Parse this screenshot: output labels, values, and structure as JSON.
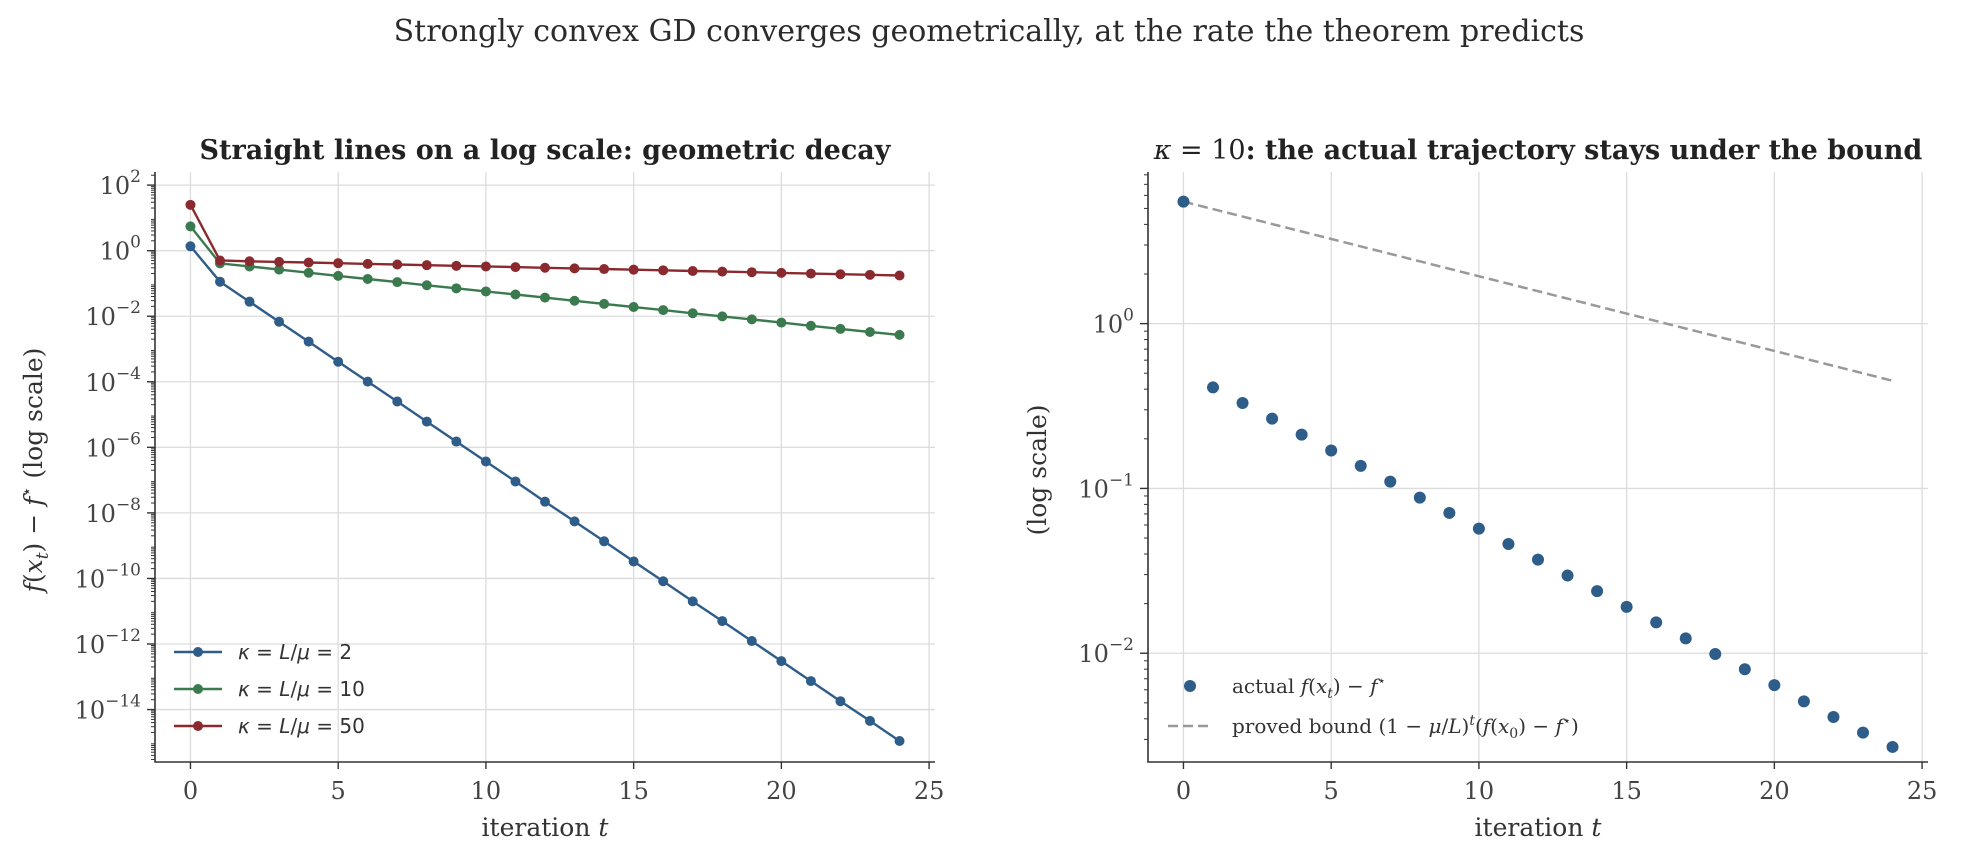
{
  "suptitle": "Strongly convex GD converges geometrically, at the rate the theorem predicts",
  "colors": {
    "kappa2": "#2f5d8a",
    "kappa10": "#3b7a4e",
    "kappa50": "#8b2a2e",
    "bound": "#999999",
    "grid": "#dcdcdc"
  },
  "chart_data": [
    {
      "type": "line",
      "title": "Straight lines on a log scale: geometric decay",
      "xlabel": "iteration t",
      "ylabel": "f(x_t) − f* (log scale)",
      "yscale": "log",
      "xlim": [
        -1.2,
        25.2
      ],
      "ylim_log10": [
        -15.6,
        2.4
      ],
      "xticks": [
        0,
        5,
        10,
        15,
        20,
        25
      ],
      "yticks_exp": [
        2,
        0,
        -2,
        -4,
        -6,
        -8,
        -10,
        -12,
        -14
      ],
      "grid": true,
      "legend_position": "lower-left",
      "x": [
        0,
        1,
        2,
        3,
        4,
        5,
        6,
        7,
        8,
        9,
        10,
        11,
        12,
        13,
        14,
        15,
        16,
        17,
        18,
        19,
        20,
        21,
        22,
        23,
        24
      ],
      "series": [
        {
          "name": "κ = L/μ = 2",
          "color_key": "kappa2",
          "values": [
            1.36,
            0.113,
            0.0278,
            0.0068,
            0.00168,
            0.00041,
            0.000101,
            2.5e-05,
            6.1e-06,
            1.5e-06,
            3.7e-07,
            9.1e-08,
            2.2e-08,
            5.5e-09,
            1.36e-09,
            3.3e-10,
            8.2e-11,
            2e-11,
            5e-12,
            1.23e-12,
            3e-13,
            7.4e-14,
            1.8e-14,
            4.5e-15,
            1.1e-15
          ]
        },
        {
          "name": "κ = L/μ = 10",
          "color_key": "kappa10",
          "values": [
            5.5,
            0.41,
            0.33,
            0.265,
            0.212,
            0.17,
            0.137,
            0.11,
            0.088,
            0.071,
            0.057,
            0.046,
            0.037,
            0.0296,
            0.0238,
            0.0191,
            0.0154,
            0.0123,
            0.0099,
            0.008,
            0.0064,
            0.0051,
            0.0041,
            0.0033,
            0.0027
          ]
        },
        {
          "name": "κ = L/μ = 50",
          "color_key": "kappa50",
          "values": [
            25.0,
            0.5,
            0.475,
            0.455,
            0.435,
            0.415,
            0.395,
            0.378,
            0.361,
            0.345,
            0.33,
            0.315,
            0.301,
            0.288,
            0.275,
            0.263,
            0.251,
            0.24,
            0.23,
            0.22,
            0.21,
            0.2,
            0.191,
            0.183,
            0.175
          ]
        }
      ],
      "legend_labels": [
        {
          "pre": "κ",
          "mid": " = ",
          "L": "L",
          "slash": "/",
          "mu": "μ",
          "eq": " = ",
          "val": "2"
        },
        {
          "pre": "κ",
          "mid": " = ",
          "L": "L",
          "slash": "/",
          "mu": "μ",
          "eq": " = ",
          "val": "10"
        },
        {
          "pre": "κ",
          "mid": " = ",
          "L": "L",
          "slash": "/",
          "mu": "μ",
          "eq": " = ",
          "val": "50"
        }
      ]
    },
    {
      "type": "scatter",
      "title_prefix": "κ = 10",
      "title_rest": ": the actual trajectory stays under the bound",
      "xlabel": "iteration t",
      "ylabel": "(log scale)",
      "yscale": "log",
      "xlim": [
        -1.2,
        25.2
      ],
      "ylim_log10": [
        -2.66,
        0.92
      ],
      "xticks": [
        0,
        5,
        10,
        15,
        20,
        25
      ],
      "yticks_exp": [
        0,
        -1,
        -2
      ],
      "grid": true,
      "legend_position": "lower-left",
      "x": [
        0,
        1,
        2,
        3,
        4,
        5,
        6,
        7,
        8,
        9,
        10,
        11,
        12,
        13,
        14,
        15,
        16,
        17,
        18,
        19,
        20,
        21,
        22,
        23,
        24
      ],
      "series": [
        {
          "name": "actual f(x_t) − f*",
          "color_key": "kappa10_actual",
          "style": "markers",
          "values": [
            5.5,
            0.41,
            0.33,
            0.265,
            0.212,
            0.17,
            0.137,
            0.11,
            0.088,
            0.071,
            0.057,
            0.046,
            0.037,
            0.0296,
            0.0238,
            0.0191,
            0.0154,
            0.0123,
            0.0099,
            0.008,
            0.0064,
            0.0051,
            0.0041,
            0.0033,
            0.0027
          ]
        },
        {
          "name": "proved bound (1 − μ/L)^t (f(x_0) − f*)",
          "color_key": "bound",
          "style": "dashed",
          "values": [
            5.5,
            0.45
          ]
        }
      ],
      "bound_x": [
        0,
        24
      ],
      "legend": {
        "actual_text": "actual ",
        "actual_math": "f(x_t) − f*",
        "bound_text": "proved bound ",
        "bound_math": "(1 − μ/L)^t (f(x_0) − f*)"
      }
    }
  ],
  "ytick_base": "10"
}
